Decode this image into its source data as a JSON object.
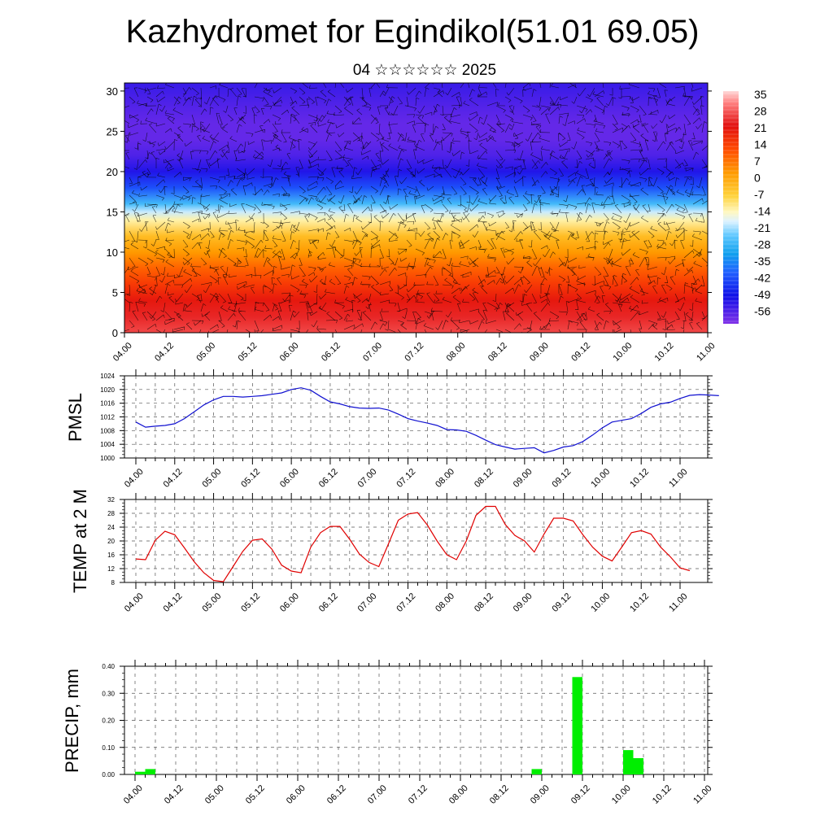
{
  "header": {
    "title": "Kazhydromet for Egindikol(51.01 69.05)",
    "subtitle": "04 ☆☆☆☆☆☆ 2025"
  },
  "time_labels": [
    "04.00",
    "04.12",
    "05.00",
    "05.12",
    "06.00",
    "06.12",
    "07.00",
    "07.12",
    "08.00",
    "08.12",
    "09.00",
    "09.12",
    "10.00",
    "10.12",
    "11.00"
  ],
  "colors": {
    "pmsl_line": "#1010d0",
    "temp_line": "#e00000",
    "precip_bar": "#00ee00",
    "grid": "#555555"
  },
  "chart_data": [
    {
      "type": "heatmap",
      "title": "Kazhydromet for Egindikol(51.01 69.05)",
      "xlabel": "",
      "ylabel": "",
      "x": [
        "04.00",
        "04.12",
        "05.00",
        "05.12",
        "06.00",
        "06.12",
        "07.00",
        "07.12",
        "08.00",
        "08.12",
        "09.00",
        "09.12",
        "10.00",
        "10.12",
        "11.00"
      ],
      "ylim": [
        0,
        31
      ],
      "yticks": [
        0,
        5,
        10,
        15,
        20,
        25,
        30
      ],
      "colorbar": {
        "ticks": [
          35,
          28,
          21,
          14,
          7,
          0,
          -7,
          -14,
          -21,
          -28,
          -35,
          -42,
          -49,
          -56
        ]
      },
      "profile": {
        "levels": [
          0,
          2,
          4,
          6,
          8,
          10,
          12,
          14,
          15,
          16,
          18,
          20,
          22,
          24,
          26,
          28,
          31
        ],
        "temperature": [
          26,
          23,
          20,
          16,
          12,
          7,
          2,
          -6,
          -12,
          -20,
          -35,
          -46,
          -54,
          -58,
          -58,
          -55,
          -50
        ]
      },
      "overlay": "wind barbs"
    },
    {
      "type": "line",
      "ylabel": "PMSL",
      "ylim": [
        1000,
        1024
      ],
      "yticks": [
        1000,
        1004,
        1008,
        1012,
        1016,
        1020,
        1024
      ],
      "x_step_hours": 3,
      "series": [
        {
          "values": [
            1010.5,
            1009,
            1009.3,
            1009.5,
            1010,
            1011.5,
            1013.5,
            1015.5,
            1017,
            1018,
            1018,
            1017.8,
            1018,
            1018.2,
            1018.6,
            1019,
            1020,
            1020.5,
            1019.8,
            1018,
            1016.4,
            1015.8,
            1015,
            1014.6,
            1014.5,
            1014.6,
            1014,
            1012.8,
            1011.5,
            1010.8,
            1010.2,
            1009.5,
            1008.3,
            1008.2,
            1007.8,
            1006.6,
            1005.2,
            1003.9,
            1003.2,
            1002.6,
            1002.8,
            1003,
            1001.5,
            1002.2,
            1003.2,
            1003.6,
            1004.8,
            1006.7,
            1008.8,
            1010.5,
            1011,
            1011.5,
            1013,
            1014.8,
            1015.8,
            1016.3,
            1017.4,
            1018.3,
            1018.5,
            1018.4,
            1018.2
          ]
        }
      ]
    },
    {
      "type": "line",
      "ylabel": "TEMP at 2 M",
      "ylim": [
        8,
        32
      ],
      "yticks": [
        8,
        12,
        16,
        20,
        24,
        28,
        32
      ],
      "x_step_hours": 3,
      "series": [
        {
          "values": [
            14.8,
            14.6,
            20.2,
            22.8,
            21.8,
            18,
            14,
            10.8,
            8.6,
            8.2,
            12.6,
            17,
            20.2,
            20.6,
            17.6,
            13,
            11.3,
            10.8,
            18.2,
            22.4,
            24.2,
            24.2,
            20.5,
            16.2,
            13.8,
            12.6,
            19.2,
            26,
            27.8,
            28.2,
            24.6,
            20,
            16,
            14.6,
            20,
            27.4,
            30,
            30,
            24.8,
            21.6,
            20,
            16.8,
            22,
            26.6,
            26.6,
            25.8,
            21.8,
            18.2,
            15.6,
            14.2,
            18.2,
            22.4,
            23,
            22,
            18.2,
            15.4,
            12.2,
            11.4
          ]
        }
      ]
    },
    {
      "type": "bar",
      "ylabel": "PRECIP, mm",
      "ylim": [
        0,
        0.4
      ],
      "yticks": [
        "0.00",
        "0.10",
        "0.20",
        "0.30",
        "0.40"
      ],
      "bars": [
        {
          "time_hour": 0,
          "value": 0.01
        },
        {
          "time_hour": 3,
          "value": 0.02
        },
        {
          "time_hour": 117,
          "value": 0.02
        },
        {
          "time_hour": 129,
          "value": 0.36
        },
        {
          "time_hour": 144,
          "value": 0.09
        },
        {
          "time_hour": 147,
          "value": 0.06
        }
      ]
    }
  ]
}
